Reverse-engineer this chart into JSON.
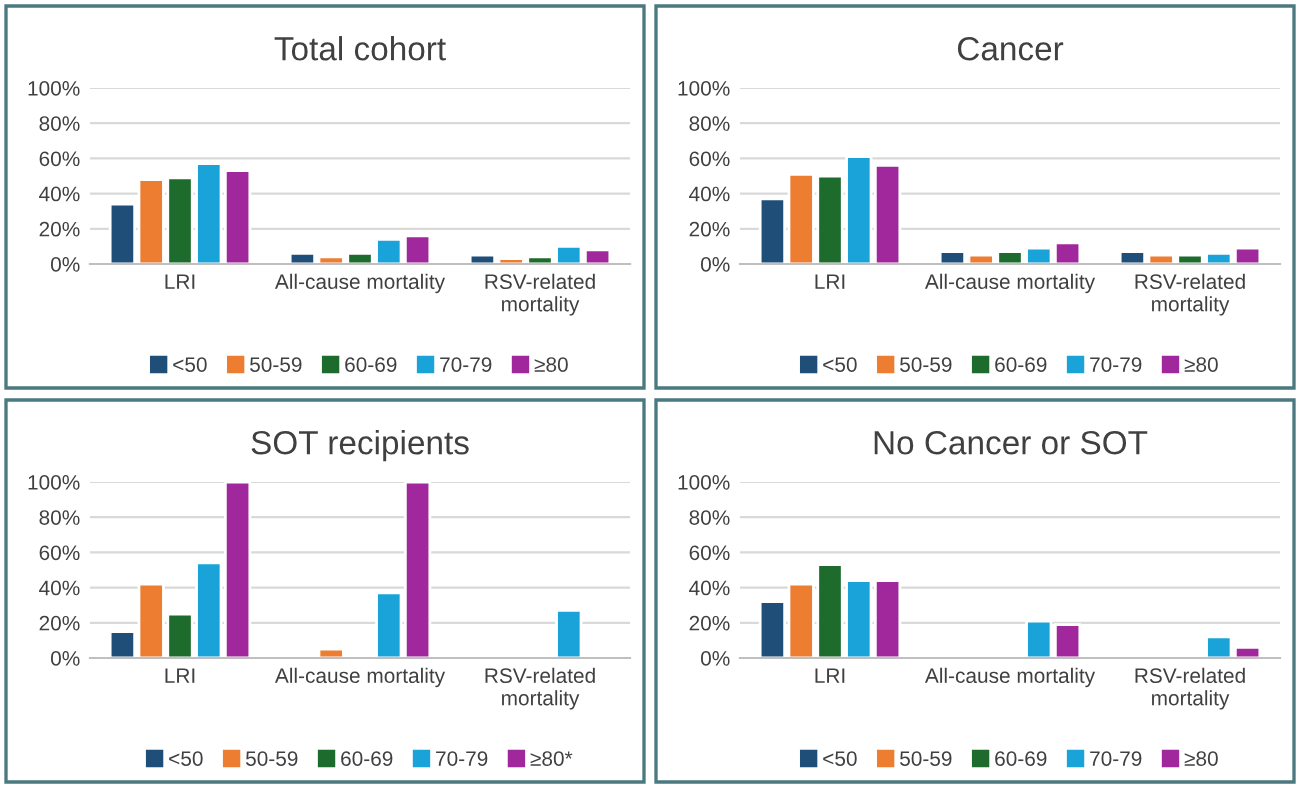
{
  "chart_data": [
    {
      "type": "bar",
      "title": "Total cohort",
      "categories": [
        "LRI",
        "All-cause mortality",
        "RSV-related\nmortality"
      ],
      "ylim": [
        0,
        100
      ],
      "yticks": [
        {
          "value": 0,
          "label": "0%"
        },
        {
          "value": 20,
          "label": "20%"
        },
        {
          "value": 40,
          "label": "40%"
        },
        {
          "value": 60,
          "label": "60%"
        },
        {
          "value": 80,
          "label": "80%"
        },
        {
          "value": 100,
          "label": "100%"
        }
      ],
      "grid": "y",
      "legend": "bottom",
      "series": [
        {
          "name": "<50",
          "color": "#1f4e79",
          "values": [
            34,
            6,
            5
          ]
        },
        {
          "name": "50-59",
          "color": "#ed7d31",
          "values": [
            48,
            4,
            3
          ]
        },
        {
          "name": "60-69",
          "color": "#1e6b2e",
          "values": [
            49,
            6,
            4
          ]
        },
        {
          "name": "70-79",
          "color": "#1aa3d9",
          "values": [
            57,
            14,
            10
          ]
        },
        {
          "name": "≥80",
          "color": "#a0289c",
          "values": [
            53,
            16,
            8
          ]
        }
      ]
    },
    {
      "type": "bar",
      "title": "Cancer",
      "categories": [
        "LRI",
        "All-cause mortality",
        "RSV-related\nmortality"
      ],
      "ylim": [
        0,
        100
      ],
      "yticks": [
        {
          "value": 0,
          "label": "0%"
        },
        {
          "value": 20,
          "label": "20%"
        },
        {
          "value": 40,
          "label": "40%"
        },
        {
          "value": 60,
          "label": "60%"
        },
        {
          "value": 80,
          "label": "80%"
        },
        {
          "value": 100,
          "label": "100%"
        }
      ],
      "grid": "y",
      "legend": "bottom",
      "series": [
        {
          "name": "<50",
          "color": "#1f4e79",
          "values": [
            37,
            7,
            7
          ]
        },
        {
          "name": "50-59",
          "color": "#ed7d31",
          "values": [
            51,
            5,
            5
          ]
        },
        {
          "name": "60-69",
          "color": "#1e6b2e",
          "values": [
            50,
            7,
            5
          ]
        },
        {
          "name": "70-79",
          "color": "#1aa3d9",
          "values": [
            61,
            9,
            6
          ]
        },
        {
          "name": "≥80",
          "color": "#a0289c",
          "values": [
            56,
            12,
            9
          ]
        }
      ]
    },
    {
      "type": "bar",
      "title": "SOT recipients",
      "categories": [
        "LRI",
        "All-cause mortality",
        "RSV-related\nmortality"
      ],
      "ylim": [
        0,
        100
      ],
      "yticks": [
        {
          "value": 0,
          "label": "0%"
        },
        {
          "value": 20,
          "label": "20%"
        },
        {
          "value": 40,
          "label": "40%"
        },
        {
          "value": 60,
          "label": "60%"
        },
        {
          "value": 80,
          "label": "80%"
        },
        {
          "value": 100,
          "label": "100%"
        }
      ],
      "grid": "y",
      "legend": "bottom",
      "series": [
        {
          "name": "<50",
          "color": "#1f4e79",
          "values": [
            15,
            null,
            null
          ]
        },
        {
          "name": "50-59",
          "color": "#ed7d31",
          "values": [
            42,
            5,
            null
          ]
        },
        {
          "name": "60-69",
          "color": "#1e6b2e",
          "values": [
            25,
            null,
            null
          ]
        },
        {
          "name": "70-79",
          "color": "#1aa3d9",
          "values": [
            54,
            37,
            27
          ]
        },
        {
          "name": "≥80*",
          "color": "#a0289c",
          "values": [
            100,
            100,
            null
          ]
        }
      ]
    },
    {
      "type": "bar",
      "title": "No Cancer or SOT",
      "categories": [
        "LRI",
        "All-cause mortality",
        "RSV-related\nmortality"
      ],
      "ylim": [
        0,
        100
      ],
      "yticks": [
        {
          "value": 0,
          "label": "0%"
        },
        {
          "value": 20,
          "label": "20%"
        },
        {
          "value": 40,
          "label": "40%"
        },
        {
          "value": 60,
          "label": "60%"
        },
        {
          "value": 80,
          "label": "80%"
        },
        {
          "value": 100,
          "label": "100%"
        }
      ],
      "grid": "y",
      "legend": "bottom",
      "series": [
        {
          "name": "<50",
          "color": "#1f4e79",
          "values": [
            32,
            null,
            null
          ]
        },
        {
          "name": "50-59",
          "color": "#ed7d31",
          "values": [
            42,
            null,
            null
          ]
        },
        {
          "name": "60-69",
          "color": "#1e6b2e",
          "values": [
            53,
            null,
            null
          ]
        },
        {
          "name": "70-79",
          "color": "#1aa3d9",
          "values": [
            44,
            21,
            12
          ]
        },
        {
          "name": "≥80",
          "color": "#a0289c",
          "values": [
            44,
            19,
            6
          ]
        }
      ]
    }
  ]
}
